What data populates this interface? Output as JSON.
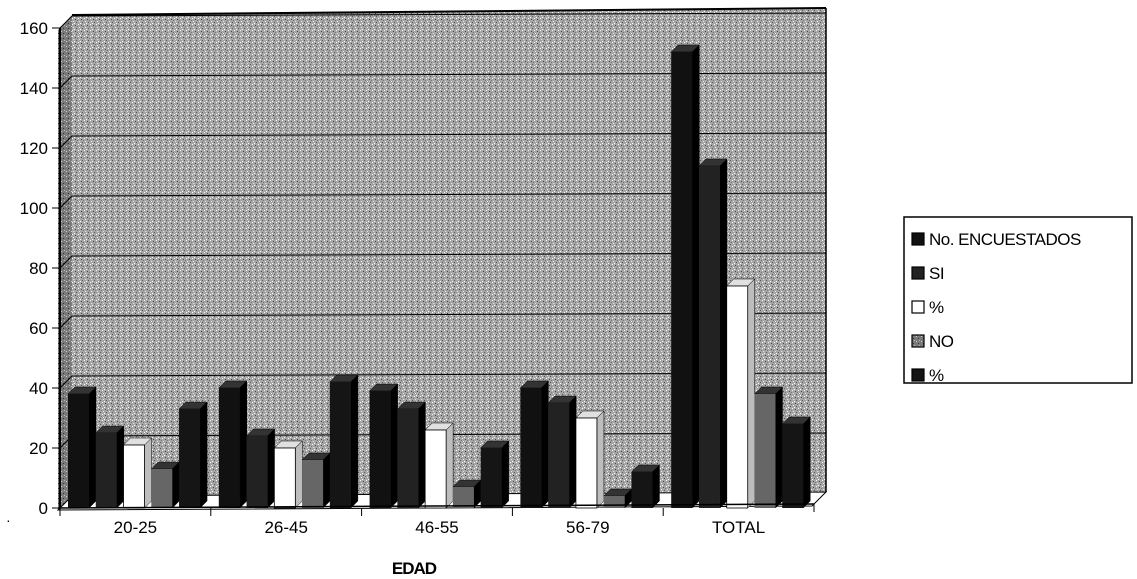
{
  "chart_data": {
    "type": "bar",
    "title": "",
    "xlabel": "EDAD",
    "ylabel": "",
    "ylim": [
      0,
      160
    ],
    "yticks": [
      0,
      20,
      40,
      60,
      80,
      100,
      120,
      140,
      160
    ],
    "categories": [
      "20-25",
      "26-45",
      "46-55",
      "56-79",
      "TOTAL"
    ],
    "series": [
      {
        "name": "No. ENCUESTADOS",
        "color": "#111111",
        "values": [
          38,
          40,
          39,
          40,
          152
        ]
      },
      {
        "name": "SI",
        "color": "#222222",
        "values": [
          25,
          24,
          33,
          35,
          114
        ]
      },
      {
        "name": "%",
        "color": "#ffffff",
        "values": [
          21,
          20,
          26,
          30,
          74
        ]
      },
      {
        "name": "NO",
        "color": "#666666",
        "values": [
          13,
          16,
          7,
          4,
          38
        ]
      },
      {
        "name": "%",
        "color": "#151515",
        "values": [
          33,
          42,
          20,
          12,
          28
        ]
      }
    ],
    "grid": true,
    "legend_position": "right",
    "style": "3d-clustered-column"
  }
}
